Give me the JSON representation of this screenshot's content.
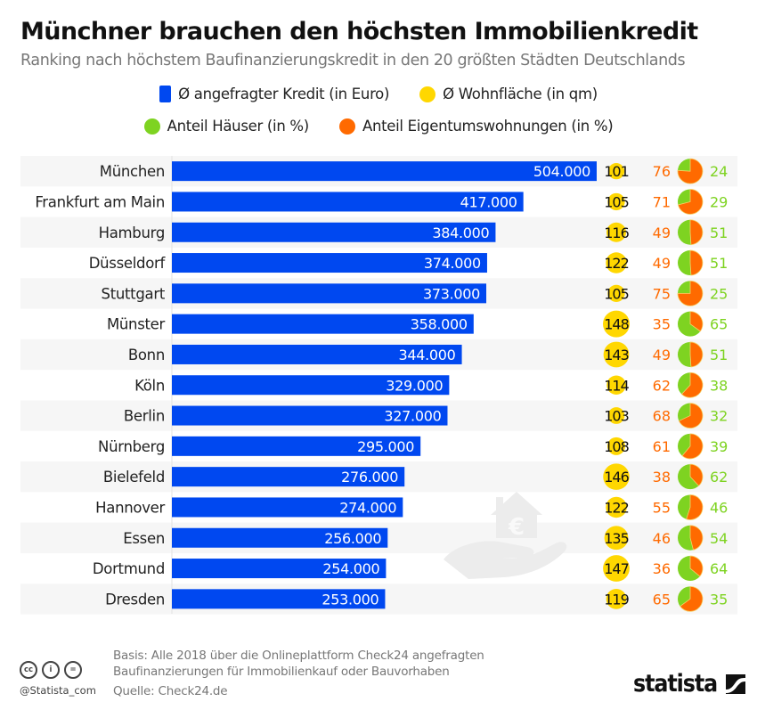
{
  "header": {
    "title": "Münchner brauchen den höchsten Immobilienkredit",
    "subtitle": "Ranking nach höchstem Baufinanzierungskredit in den 20 größten Städten Deutschlands"
  },
  "legend": [
    {
      "label": "Ø angefragter Kredit (in Euro)",
      "shape": "square",
      "color": "#0048f0"
    },
    {
      "label": "Ø Wohnfläche (in qm)",
      "shape": "circle",
      "color": "#ffd700"
    },
    {
      "label": "Anteil Häuser (in %)",
      "shape": "circle",
      "color": "#7ed321"
    },
    {
      "label": "Anteil Eigentumswohnungen (in %)",
      "shape": "circle",
      "color": "#ff6a00"
    }
  ],
  "colors": {
    "bar": "#0048f0",
    "area_circle": "#ffd700",
    "houses": "#7ed321",
    "apartments": "#ff6a00",
    "row_band": "#f6f6f6"
  },
  "chart_data": {
    "type": "bar",
    "orientation": "horizontal",
    "title": "Münchner brauchen den höchsten Immobilienkredit",
    "subtitle": "Ranking nach höchstem Baufinanzierungskredit in den 20 größten Städten Deutschlands",
    "xlim": [
      0,
      504000
    ],
    "grid": false,
    "legend_position": "top-center",
    "categories": [
      "München",
      "Frankfurt am Main",
      "Hamburg",
      "Düsseldorf",
      "Stuttgart",
      "Münster",
      "Bonn",
      "Köln",
      "Berlin",
      "Nürnberg",
      "Bielefeld",
      "Hannover",
      "Essen",
      "Dortmund",
      "Dresden"
    ],
    "series": [
      {
        "name": "Ø angefragter Kredit (in Euro)",
        "type": "bar",
        "values": [
          504000,
          417000,
          384000,
          374000,
          373000,
          358000,
          344000,
          329000,
          327000,
          295000,
          276000,
          274000,
          256000,
          254000,
          253000
        ],
        "labels": [
          "504.000",
          "417.000",
          "384.000",
          "374.000",
          "373.000",
          "358.000",
          "344.000",
          "329.000",
          "327.000",
          "295.000",
          "276.000",
          "274.000",
          "256.000",
          "254.000",
          "253.000"
        ]
      },
      {
        "name": "Ø Wohnfläche (in qm)",
        "type": "table",
        "values": [
          101,
          105,
          116,
          122,
          105,
          148,
          143,
          114,
          103,
          108,
          146,
          122,
          135,
          147,
          119
        ]
      },
      {
        "name": "Anteil Eigentumswohnungen (in %)",
        "type": "pie",
        "values": [
          76,
          71,
          49,
          49,
          75,
          35,
          49,
          62,
          68,
          61,
          38,
          55,
          46,
          36,
          65
        ]
      },
      {
        "name": "Anteil Häuser (in %)",
        "type": "pie",
        "values": [
          24,
          29,
          51,
          51,
          25,
          65,
          51,
          38,
          32,
          39,
          62,
          46,
          54,
          64,
          35
        ]
      }
    ]
  },
  "footer": {
    "basis_line1": "Basis: Alle 2018 über die Onlineplattform Check24 angefragten",
    "basis_line2": "Baufinanzierungen für Immobilienkauf oder Bauvorhaben",
    "source": "Quelle: Check24.de",
    "handle": "@Statista_com",
    "cc_icons": [
      {
        "name": "creative-commons-icon",
        "glyph": "cc"
      },
      {
        "name": "attribution-icon",
        "glyph": "i"
      },
      {
        "name": "no-derivatives-icon",
        "glyph": "="
      }
    ],
    "brand": "statista"
  },
  "watermark": {
    "icon": "hand-holding-house-euro-icon",
    "glyph": "€"
  }
}
